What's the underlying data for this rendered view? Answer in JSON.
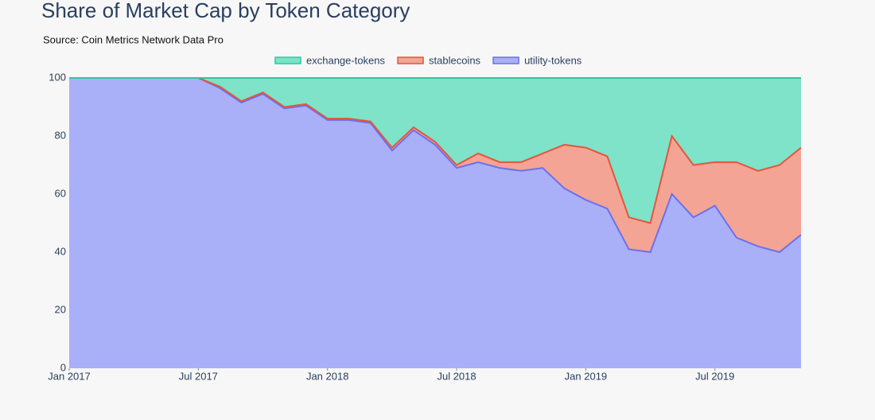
{
  "chart_data": {
    "type": "stacked_area",
    "title": "Share of Market Cap by Token Category",
    "subtitle": "Source: Coin Metrics Network Data Pro",
    "x": [
      "2017-01",
      "2017-02",
      "2017-03",
      "2017-04",
      "2017-05",
      "2017-06",
      "2017-07",
      "2017-08",
      "2017-09",
      "2017-10",
      "2017-11",
      "2017-12",
      "2018-01",
      "2018-02",
      "2018-03",
      "2018-04",
      "2018-05",
      "2018-06",
      "2018-07",
      "2018-08",
      "2018-09",
      "2018-10",
      "2018-11",
      "2018-12",
      "2019-01",
      "2019-02",
      "2019-03",
      "2019-04",
      "2019-05",
      "2019-06",
      "2019-07",
      "2019-08",
      "2019-09",
      "2019-10",
      "2019-11"
    ],
    "series": [
      {
        "name": "exchange-tokens",
        "color": "#7ee3c8",
        "line_color": "#2fc79e",
        "values": [
          0,
          0,
          0,
          0,
          0,
          0,
          0,
          3,
          8,
          5,
          10,
          9,
          14,
          14,
          15,
          24,
          17,
          22,
          30,
          26,
          29,
          29,
          26,
          23,
          24,
          27,
          48,
          50,
          20,
          30,
          29,
          29,
          32,
          30,
          24
        ]
      },
      {
        "name": "stablecoins",
        "color": "#f4a494",
        "line_color": "#e5553d",
        "values": [
          0,
          0,
          0,
          0,
          0,
          0,
          0,
          0.5,
          0.5,
          0.5,
          0.5,
          0.5,
          0.5,
          0.5,
          0.5,
          1,
          1,
          1,
          1,
          3,
          2,
          3,
          5,
          15,
          18,
          18,
          11,
          10,
          20,
          18,
          15,
          26,
          26,
          30,
          30
        ]
      },
      {
        "name": "utility-tokens",
        "color": "#aab0f7",
        "line_color": "#6b6ff0",
        "values": [
          100,
          100,
          100,
          100,
          100,
          100,
          100,
          96.5,
          91.5,
          94.5,
          89.5,
          90.5,
          85.5,
          85.5,
          84.5,
          75,
          82,
          77,
          69,
          71,
          69,
          68,
          69,
          62,
          58,
          55,
          41,
          40,
          60,
          52,
          56,
          45,
          42,
          40,
          46
        ]
      }
    ],
    "xlim": [
      "2017-01",
      "2019-11"
    ],
    "xticks": [
      {
        "value": "2017-01",
        "label": "Jan 2017"
      },
      {
        "value": "2017-07",
        "label": "Jul 2017"
      },
      {
        "value": "2018-01",
        "label": "Jan 2018"
      },
      {
        "value": "2018-07",
        "label": "Jul 2018"
      },
      {
        "value": "2019-01",
        "label": "Jan 2019"
      },
      {
        "value": "2019-07",
        "label": "Jul 2019"
      }
    ],
    "ylim": [
      0,
      100
    ],
    "yticks": [
      0,
      20,
      40,
      60,
      80,
      100
    ],
    "legend": "top"
  }
}
